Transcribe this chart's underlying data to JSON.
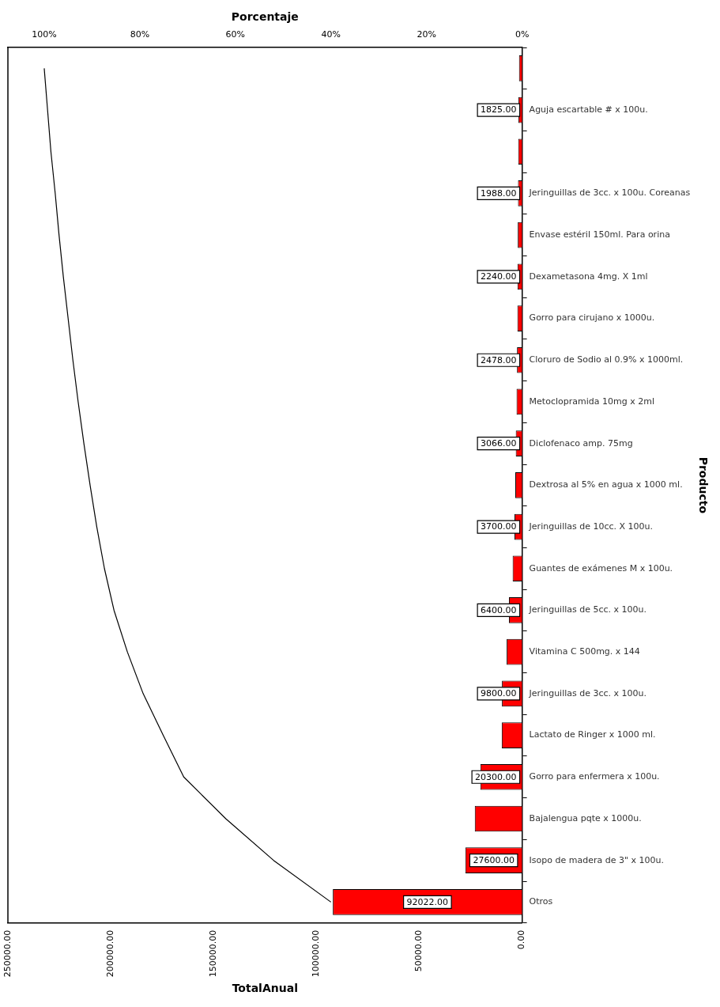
{
  "chart_data": {
    "type": "bar",
    "orientation": "horizontal",
    "xlabel": "TotalAnual",
    "x2label": "Porcentaje",
    "ylabel": "Producto",
    "categories": [
      null,
      "Aguja escartable # x 100u.",
      null,
      "Jeringuillas de 3cc. x 100u. Coreanas",
      "Envase estéril 150ml. Para orina",
      "Dexametasona 4mg. X 1ml",
      "Gorro para cirujano x 1000u.",
      "Cloruro de Sodio al 0.9% x 1000ml.",
      "Metoclopramida 10mg x 2ml",
      "Diclofenaco amp. 75mg",
      "Dextrosa al 5% en agua x 1000 ml.",
      "Jeringuillas de 10cc. X 100u.",
      "Guantes de exámenes M x 100u.",
      "Jeringuillas de 5cc. x 100u.",
      "Vitamina C 500mg. x 144",
      "Jeringuillas de 3cc. x 100u.",
      "Lactato de Ringer x 1000 ml.",
      "Gorro para enfermera x 100u.",
      "Bajalengua pqte x 1000u.",
      "Isopo de madera de 3\" x 100u.",
      "Otros"
    ],
    "series": [
      {
        "color": "#ff0000",
        "values": [
          1500,
          1825,
          1900,
          1988,
          2100,
          2240,
          2300,
          2478,
          2700,
          3066,
          3300,
          3700,
          4600,
          6400,
          7500,
          9800,
          9900,
          20300,
          23000,
          27600,
          92022
        ],
        "value_labels": [
          null,
          "1825.00",
          null,
          "1988.00",
          null,
          "2240.00",
          null,
          "2478.00",
          null,
          "3066.00",
          null,
          "3700.00",
          null,
          "6400.00",
          null,
          "9800.00",
          null,
          "20300.00",
          null,
          "27600.00",
          "92022.00"
        ]
      },
      {
        "type": "line",
        "axis": "x2",
        "color": "#000000",
        "values": [
          100,
          99.3,
          98.6,
          97.7,
          96.9,
          96.0,
          95.0,
          94.0,
          92.9,
          91.7,
          90.4,
          89.0,
          87.4,
          85.4,
          82.6,
          79.3,
          75.1,
          70.8,
          62.0,
          52.0,
          40.0
        ]
      }
    ],
    "xlim": [
      250000,
      0
    ],
    "xticks": [
      {
        "value": 250000,
        "label": "250000.00"
      },
      {
        "value": 200000,
        "label": "200000.00"
      },
      {
        "value": 150000,
        "label": "150000.00"
      },
      {
        "value": 100000,
        "label": "100000.00"
      },
      {
        "value": 50000,
        "label": "50000.00"
      },
      {
        "value": 0,
        "label": "0.00"
      }
    ],
    "x2lim": [
      107.6,
      0
    ],
    "x2ticks": [
      {
        "value": 100,
        "label": "100%"
      },
      {
        "value": 80,
        "label": "80%"
      },
      {
        "value": 60,
        "label": "60%"
      },
      {
        "value": 40,
        "label": "40%"
      },
      {
        "value": 20,
        "label": "20%"
      },
      {
        "value": 0,
        "label": "0%"
      }
    ],
    "grid": false,
    "legend": false,
    "marker": "none",
    "line_style": "solid"
  }
}
